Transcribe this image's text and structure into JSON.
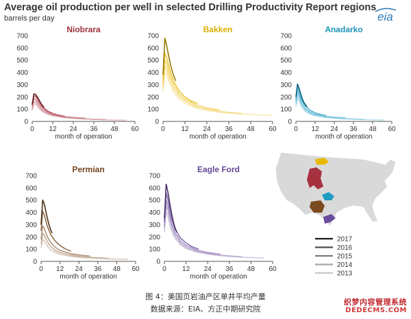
{
  "title": "Average oil production per well in selected Drilling Productivity Report regions",
  "subtitle": "barrels per day",
  "logo_text": "eia",
  "caption_line1": "图 4：美国页岩油产区单井平均产量",
  "caption_line2": "数据来源：EIA、方正中期研究院",
  "watermark_line1": "织梦内容管理系统",
  "watermark_line2": "DEDECMS.COM",
  "colors": {
    "niobrara": "#a6323f",
    "bakken": "#e8b800",
    "anadarko": "#1e9cc4",
    "permian": "#7a4a1e",
    "eagle_ford": "#6a4c9c",
    "map_land": "#d9d9d9",
    "map_border": "#ffffff"
  },
  "legend": {
    "years": [
      "2017",
      "2016",
      "2015",
      "2014",
      "2013"
    ],
    "shades": [
      "#1a1a1a",
      "#4d4d4d",
      "#7a7a7a",
      "#a6a6a6",
      "#c8c8c8"
    ]
  },
  "chart_data": [
    {
      "type": "line",
      "title": "Niobrara",
      "xlabel": "month of operation",
      "ylabel": "",
      "xlim": [
        0,
        60
      ],
      "ylim": [
        0,
        700
      ],
      "xticks": [
        0,
        12,
        24,
        36,
        48,
        60
      ],
      "yticks": [
        0,
        100,
        200,
        300,
        400,
        500,
        600,
        700
      ],
      "series": [
        {
          "name": "2017",
          "x": [
            0,
            1,
            2,
            3,
            4,
            5,
            6,
            7
          ],
          "y": [
            140,
            225,
            220,
            200,
            175,
            150,
            130,
            115
          ]
        },
        {
          "name": "2016",
          "x": [
            0,
            1,
            2,
            3,
            4,
            6,
            9,
            12,
            15,
            18,
            19
          ],
          "y": [
            130,
            210,
            205,
            185,
            160,
            120,
            85,
            65,
            52,
            45,
            42
          ]
        },
        {
          "name": "2015",
          "x": [
            0,
            1,
            2,
            3,
            4,
            6,
            9,
            12,
            18,
            24,
            30,
            31
          ],
          "y": [
            115,
            190,
            180,
            160,
            140,
            105,
            75,
            58,
            40,
            32,
            27,
            26
          ]
        },
        {
          "name": "2014",
          "x": [
            0,
            1,
            2,
            3,
            4,
            6,
            9,
            12,
            18,
            24,
            30,
            36,
            42,
            43
          ],
          "y": [
            100,
            165,
            160,
            140,
            120,
            90,
            65,
            50,
            35,
            27,
            22,
            18,
            15,
            15
          ]
        },
        {
          "name": "2013",
          "x": [
            0,
            1,
            2,
            3,
            4,
            6,
            9,
            12,
            18,
            24,
            30,
            36,
            42,
            48,
            54,
            55
          ],
          "y": [
            90,
            145,
            140,
            125,
            105,
            80,
            58,
            45,
            32,
            25,
            20,
            16,
            13,
            11,
            10,
            10
          ]
        }
      ]
    },
    {
      "type": "line",
      "title": "Bakken",
      "xlabel": "month of operation",
      "ylabel": "",
      "xlim": [
        0,
        60
      ],
      "ylim": [
        0,
        700
      ],
      "xticks": [
        0,
        12,
        24,
        36,
        48,
        60
      ],
      "yticks": [
        0,
        100,
        200,
        300,
        400,
        500,
        600,
        700
      ],
      "series": [
        {
          "name": "2017",
          "x": [
            0,
            1,
            2,
            3,
            4,
            5,
            6,
            7
          ],
          "y": [
            380,
            680,
            620,
            540,
            470,
            410,
            365,
            330
          ]
        },
        {
          "name": "2016",
          "x": [
            0,
            1,
            2,
            3,
            4,
            6,
            9,
            12,
            15,
            18,
            19
          ],
          "y": [
            330,
            560,
            520,
            460,
            400,
            320,
            245,
            200,
            170,
            150,
            145
          ]
        },
        {
          "name": "2015",
          "x": [
            0,
            1,
            2,
            3,
            4,
            6,
            9,
            12,
            18,
            24,
            30,
            31
          ],
          "y": [
            300,
            500,
            470,
            410,
            360,
            290,
            220,
            180,
            135,
            110,
            95,
            93
          ]
        },
        {
          "name": "2014",
          "x": [
            0,
            1,
            2,
            3,
            4,
            6,
            9,
            12,
            18,
            24,
            30,
            36,
            42,
            43
          ],
          "y": [
            270,
            450,
            420,
            370,
            325,
            260,
            200,
            165,
            120,
            98,
            84,
            74,
            67,
            66
          ]
        },
        {
          "name": "2013",
          "x": [
            0,
            1,
            2,
            3,
            4,
            6,
            9,
            12,
            18,
            24,
            30,
            36,
            42,
            48,
            54,
            60
          ],
          "y": [
            250,
            400,
            380,
            335,
            295,
            235,
            180,
            148,
            110,
            90,
            77,
            68,
            62,
            57,
            53,
            50
          ]
        }
      ]
    },
    {
      "type": "line",
      "title": "Anadarko",
      "xlabel": "month of operation",
      "ylabel": "",
      "xlim": [
        0,
        60
      ],
      "ylim": [
        0,
        700
      ],
      "xticks": [
        0,
        12,
        24,
        36,
        48,
        60
      ],
      "yticks": [
        0,
        100,
        200,
        300,
        400,
        500,
        600,
        700
      ],
      "series": [
        {
          "name": "2017",
          "x": [
            0,
            1,
            2,
            3,
            4,
            5,
            6,
            7
          ],
          "y": [
            200,
            305,
            270,
            225,
            185,
            155,
            135,
            120
          ]
        },
        {
          "name": "2016",
          "x": [
            0,
            1,
            2,
            3,
            4,
            6,
            9,
            12,
            15,
            18,
            19
          ],
          "y": [
            180,
            280,
            245,
            200,
            165,
            125,
            90,
            70,
            58,
            50,
            48
          ]
        },
        {
          "name": "2015",
          "x": [
            0,
            1,
            2,
            3,
            4,
            6,
            9,
            12,
            18,
            24,
            30,
            31
          ],
          "y": [
            160,
            250,
            215,
            175,
            145,
            105,
            75,
            58,
            42,
            34,
            29,
            28
          ]
        },
        {
          "name": "2014",
          "x": [
            0,
            1,
            2,
            3,
            4,
            6,
            9,
            12,
            18,
            24,
            30,
            36,
            42,
            43
          ],
          "y": [
            140,
            220,
            190,
            155,
            125,
            92,
            66,
            52,
            37,
            29,
            24,
            20,
            17,
            17
          ]
        },
        {
          "name": "2013",
          "x": [
            0,
            1,
            2,
            3,
            4,
            6,
            9,
            12,
            18,
            24,
            30,
            36,
            42,
            48,
            54,
            55
          ],
          "y": [
            120,
            190,
            165,
            135,
            110,
            80,
            58,
            46,
            33,
            26,
            21,
            18,
            15,
            13,
            12,
            12
          ]
        }
      ]
    },
    {
      "type": "line",
      "title": "Permian",
      "xlabel": "month of operation",
      "ylabel": "",
      "xlim": [
        0,
        60
      ],
      "ylim": [
        0,
        700
      ],
      "xticks": [
        0,
        12,
        24,
        36,
        48,
        60
      ],
      "yticks": [
        0,
        100,
        200,
        300,
        400,
        500,
        600,
        700
      ],
      "series": [
        {
          "name": "2017",
          "x": [
            0,
            1,
            2,
            3,
            4,
            5,
            6,
            7
          ],
          "y": [
            300,
            500,
            470,
            410,
            350,
            300,
            260,
            230
          ]
        },
        {
          "name": "2016",
          "x": [
            0,
            1,
            2,
            3,
            4,
            6,
            9,
            12,
            15,
            18,
            19
          ],
          "y": [
            250,
            410,
            380,
            330,
            285,
            220,
            165,
            130,
            105,
            88,
            84
          ]
        },
        {
          "name": "2015",
          "x": [
            0,
            1,
            2,
            3,
            4,
            6,
            9,
            12,
            18,
            24,
            30,
            31
          ],
          "y": [
            180,
            290,
            270,
            235,
            200,
            155,
            115,
            90,
            65,
            52,
            44,
            43
          ]
        },
        {
          "name": "2014",
          "x": [
            0,
            1,
            2,
            3,
            4,
            6,
            9,
            12,
            18,
            24,
            30,
            36,
            42,
            43
          ],
          "y": [
            140,
            230,
            215,
            185,
            160,
            122,
            90,
            72,
            52,
            41,
            34,
            29,
            25,
            25
          ]
        },
        {
          "name": "2013",
          "x": [
            0,
            1,
            2,
            3,
            4,
            6,
            9,
            12,
            18,
            24,
            30,
            36,
            42,
            48,
            54,
            55
          ],
          "y": [
            110,
            180,
            168,
            145,
            125,
            96,
            72,
            58,
            42,
            33,
            28,
            24,
            21,
            19,
            17,
            17
          ]
        }
      ]
    },
    {
      "type": "line",
      "title": "Eagle Ford",
      "xlabel": "month of operation",
      "ylabel": "",
      "xlim": [
        0,
        60
      ],
      "ylim": [
        0,
        700
      ],
      "xticks": [
        0,
        12,
        24,
        36,
        48,
        60
      ],
      "yticks": [
        0,
        100,
        200,
        300,
        400,
        500,
        600,
        700
      ],
      "series": [
        {
          "name": "2017",
          "x": [
            0,
            1,
            2,
            3,
            4,
            5,
            6,
            7
          ],
          "y": [
            350,
            630,
            560,
            470,
            390,
            320,
            270,
            235
          ]
        },
        {
          "name": "2016",
          "x": [
            0,
            1,
            2,
            3,
            4,
            6,
            9,
            12,
            15,
            18,
            19
          ],
          "y": [
            320,
            560,
            500,
            420,
            350,
            260,
            190,
            150,
            122,
            105,
            100
          ]
        },
        {
          "name": "2015",
          "x": [
            0,
            1,
            2,
            3,
            4,
            6,
            9,
            12,
            18,
            24,
            30,
            31
          ],
          "y": [
            290,
            500,
            450,
            375,
            310,
            230,
            165,
            130,
            92,
            72,
            60,
            58
          ]
        },
        {
          "name": "2014",
          "x": [
            0,
            1,
            2,
            3,
            4,
            6,
            9,
            12,
            18,
            24,
            30,
            36,
            42,
            43
          ],
          "y": [
            270,
            460,
            410,
            340,
            280,
            205,
            148,
            115,
            82,
            64,
            52,
            44,
            38,
            37
          ]
        },
        {
          "name": "2013",
          "x": [
            0,
            1,
            2,
            3,
            4,
            6,
            9,
            12,
            18,
            24,
            30,
            36,
            42,
            48,
            54,
            55
          ],
          "y": [
            240,
            410,
            365,
            300,
            250,
            185,
            135,
            105,
            75,
            58,
            48,
            41,
            35,
            31,
            28,
            28
          ]
        }
      ]
    }
  ]
}
